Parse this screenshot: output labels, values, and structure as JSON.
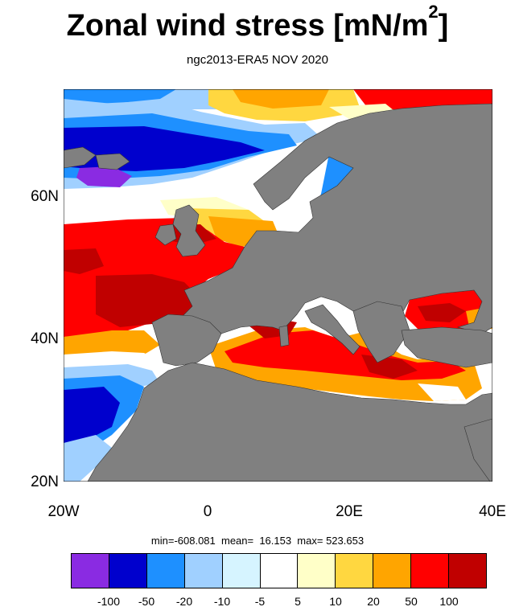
{
  "title": "Zonal wind stress [mN/m",
  "title_sup": "2",
  "title_close": "]",
  "subtitle": "ngc2013-ERA5  NOV 2020",
  "lat_labels": [
    "60N",
    "40N",
    "20N"
  ],
  "lon_labels": [
    "20W",
    "0",
    "20E",
    "40E"
  ],
  "stats": "min=-608.081  mean=  16.153  max= 523.653",
  "colorbar": {
    "colors": [
      "#8a2be2",
      "#0000cd",
      "#1e90ff",
      "#a0d0ff",
      "#d6f4ff",
      "#ffffff",
      "#ffffc8",
      "#ffd740",
      "#ffa500",
      "#ff0000",
      "#c00000"
    ],
    "labels": [
      "-100",
      "-50",
      "-20",
      "-10",
      "-5",
      "5",
      "10",
      "20",
      "50",
      "100"
    ]
  },
  "map": {
    "land_color": "#808080",
    "lon_range": [
      -20,
      40
    ],
    "lat_range": [
      20,
      75
    ]
  }
}
